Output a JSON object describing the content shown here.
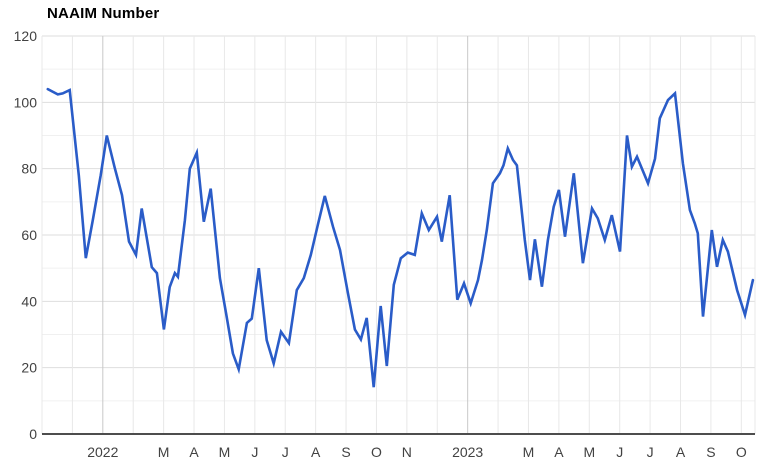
{
  "chart_data": {
    "type": "line",
    "title": "NAAIM Number",
    "series_name": "NAAIM Number",
    "legend_position": "none",
    "grid": "on",
    "ylim": [
      0,
      120
    ],
    "xlim_months": [
      -2,
      21.45
    ],
    "y_ticks": [
      0,
      20,
      40,
      60,
      80,
      100,
      120
    ],
    "y_minor_ticks": [
      10,
      30,
      50,
      70,
      90,
      110
    ],
    "x_ticks": [
      {
        "m": 0,
        "label": "2022"
      },
      {
        "m": 2,
        "label": "M"
      },
      {
        "m": 3,
        "label": "A"
      },
      {
        "m": 4,
        "label": "M"
      },
      {
        "m": 5,
        "label": "J"
      },
      {
        "m": 6,
        "label": "J"
      },
      {
        "m": 7,
        "label": "A"
      },
      {
        "m": 8,
        "label": "S"
      },
      {
        "m": 9,
        "label": "O"
      },
      {
        "m": 10,
        "label": "N"
      },
      {
        "m": 12,
        "label": "2023"
      },
      {
        "m": 14,
        "label": "M"
      },
      {
        "m": 15,
        "label": "A"
      },
      {
        "m": 16,
        "label": "M"
      },
      {
        "m": 17,
        "label": "J"
      },
      {
        "m": 18,
        "label": "J"
      },
      {
        "m": 19,
        "label": "A"
      },
      {
        "m": 20,
        "label": "S"
      },
      {
        "m": 21,
        "label": "O"
      }
    ],
    "year_gridlines": [
      0,
      12
    ],
    "colors": {
      "line": "#2a5cc8",
      "grid_major_h": "#dedede",
      "grid_minor_h": "#f0f0f0",
      "grid_month_v": "#e8e8e8",
      "grid_year_v": "#c8c8c8",
      "axis": "#4d4d4d",
      "label": "#424242",
      "title": "#000000"
    },
    "points": [
      [
        -1.81,
        104
      ],
      [
        -1.48,
        102.4
      ],
      [
        -1.32,
        102.7
      ],
      [
        -1.09,
        103.7
      ],
      [
        -0.79,
        78
      ],
      [
        -0.56,
        53
      ],
      [
        -0.33,
        64.5
      ],
      [
        -0.07,
        78
      ],
      [
        0.13,
        90
      ],
      [
        0.39,
        80.3
      ],
      [
        0.63,
        72
      ],
      [
        0.86,
        58
      ],
      [
        1.09,
        54
      ],
      [
        1.28,
        68
      ],
      [
        1.61,
        50.3
      ],
      [
        1.78,
        48.5
      ],
      [
        2.01,
        31.5
      ],
      [
        2.2,
        44.3
      ],
      [
        2.37,
        48.5
      ],
      [
        2.47,
        47.4
      ],
      [
        2.7,
        64.5
      ],
      [
        2.86,
        80
      ],
      [
        3.09,
        84.8
      ],
      [
        3.32,
        64
      ],
      [
        3.55,
        74
      ],
      [
        3.85,
        47
      ],
      [
        4.05,
        36.5
      ],
      [
        4.28,
        24.3
      ],
      [
        4.47,
        19.5
      ],
      [
        4.74,
        33.5
      ],
      [
        4.9,
        34.8
      ],
      [
        5.13,
        50
      ],
      [
        5.39,
        28.3
      ],
      [
        5.62,
        21.3
      ],
      [
        5.86,
        30.8
      ],
      [
        6.12,
        27.4
      ],
      [
        6.38,
        43.4
      ],
      [
        6.61,
        47
      ],
      [
        6.84,
        54
      ],
      [
        7.07,
        63
      ],
      [
        7.3,
        71.8
      ],
      [
        7.57,
        62.5
      ],
      [
        7.8,
        55.5
      ],
      [
        8.06,
        42.5
      ],
      [
        8.29,
        31.5
      ],
      [
        8.49,
        28.5
      ],
      [
        8.68,
        35
      ],
      [
        8.91,
        14.1
      ],
      [
        9.14,
        38.6
      ],
      [
        9.34,
        20.5
      ],
      [
        9.57,
        45
      ],
      [
        9.8,
        53
      ],
      [
        10.03,
        54.7
      ],
      [
        10.26,
        54
      ],
      [
        10.49,
        66.5
      ],
      [
        10.72,
        61.5
      ],
      [
        10.99,
        65.5
      ],
      [
        11.15,
        58
      ],
      [
        11.41,
        72
      ],
      [
        11.66,
        40.5
      ],
      [
        11.88,
        45.4
      ],
      [
        12.1,
        39.4
      ],
      [
        12.34,
        46.4
      ],
      [
        12.47,
        52.5
      ],
      [
        12.63,
        61.5
      ],
      [
        12.83,
        75.6
      ],
      [
        13.06,
        78.6
      ],
      [
        13.18,
        81
      ],
      [
        13.32,
        86.1
      ],
      [
        13.49,
        82.6
      ],
      [
        13.62,
        81
      ],
      [
        13.88,
        58.5
      ],
      [
        14.05,
        46.4
      ],
      [
        14.21,
        58.7
      ],
      [
        14.44,
        44.4
      ],
      [
        14.64,
        58.5
      ],
      [
        14.83,
        68.5
      ],
      [
        15.0,
        73.6
      ],
      [
        15.2,
        59.5
      ],
      [
        15.49,
        78.6
      ],
      [
        15.79,
        51.5
      ],
      [
        16.09,
        68
      ],
      [
        16.28,
        65
      ],
      [
        16.51,
        58.5
      ],
      [
        16.74,
        66
      ],
      [
        17.01,
        55
      ],
      [
        17.24,
        90
      ],
      [
        17.4,
        80.6
      ],
      [
        17.57,
        83.6
      ],
      [
        17.93,
        75.6
      ],
      [
        18.16,
        83
      ],
      [
        18.32,
        95.2
      ],
      [
        18.59,
        100.7
      ],
      [
        18.82,
        102.7
      ],
      [
        19.08,
        81.6
      ],
      [
        19.31,
        67.5
      ],
      [
        19.47,
        63.5
      ],
      [
        19.57,
        60.5
      ],
      [
        19.74,
        35.4
      ],
      [
        20.03,
        61.5
      ],
      [
        20.2,
        50.4
      ],
      [
        20.39,
        58.5
      ],
      [
        20.56,
        55
      ],
      [
        20.86,
        43.4
      ],
      [
        21.12,
        35.9
      ],
      [
        21.38,
        46.4
      ]
    ]
  }
}
